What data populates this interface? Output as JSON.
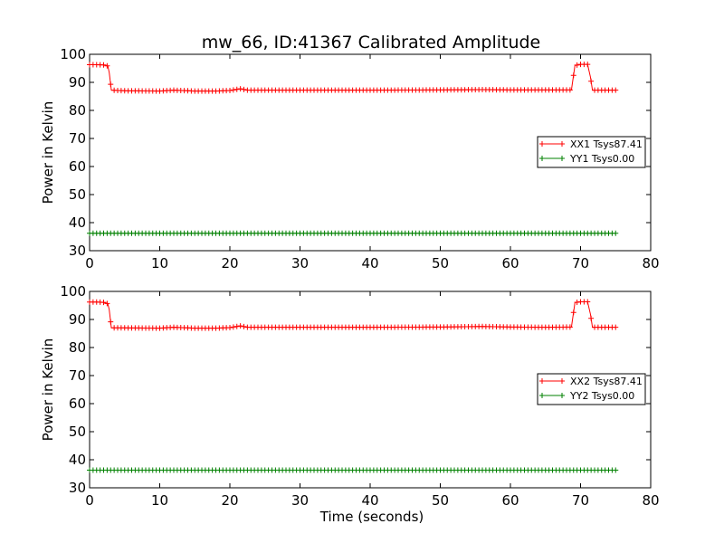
{
  "title": "mw_66, ID:41367 Calibrated Amplitude",
  "colors": {
    "xx": "#ff0000",
    "yy": "#008000"
  },
  "chart_data": [
    {
      "type": "line",
      "xlim": [
        0,
        80
      ],
      "ylim": [
        30,
        100
      ],
      "xticks": [
        0,
        10,
        20,
        30,
        40,
        50,
        60,
        70,
        80
      ],
      "yticks": [
        30,
        40,
        50,
        60,
        70,
        80,
        90,
        100
      ],
      "xlabel": "",
      "ylabel": "Power in Kelvin",
      "grid": false,
      "legend_position": "center-right",
      "series": [
        {
          "name": "XX1 Tsys87.41",
          "color": "#ff0000",
          "marker": "+",
          "points": [
            [
              0,
              96.3
            ],
            [
              1,
              96.3
            ],
            [
              2,
              96.2
            ],
            [
              2.6,
              95.8
            ],
            [
              2.8,
              93.5
            ],
            [
              3.1,
              87.2
            ],
            [
              5,
              87.0
            ],
            [
              10,
              86.9
            ],
            [
              12,
              87.2
            ],
            [
              15,
              86.9
            ],
            [
              18,
              86.9
            ],
            [
              20,
              87.1
            ],
            [
              21.5,
              87.7
            ],
            [
              22.5,
              87.2
            ],
            [
              30,
              87.2
            ],
            [
              40,
              87.2
            ],
            [
              50,
              87.3
            ],
            [
              56,
              87.4
            ],
            [
              60,
              87.3
            ],
            [
              65,
              87.3
            ],
            [
              68.7,
              87.3
            ],
            [
              69.2,
              96.0
            ],
            [
              70,
              96.4
            ],
            [
              71,
              96.4
            ],
            [
              71.4,
              92.0
            ],
            [
              71.7,
              87.2
            ],
            [
              75,
              87.2
            ]
          ]
        },
        {
          "name": "YY1 Tsys0.00",
          "color": "#008000",
          "marker": "+",
          "points": [
            [
              0,
              36.2
            ],
            [
              75,
              36.2
            ]
          ]
        }
      ]
    },
    {
      "type": "line",
      "xlim": [
        0,
        80
      ],
      "ylim": [
        30,
        100
      ],
      "xticks": [
        0,
        10,
        20,
        30,
        40,
        50,
        60,
        70,
        80
      ],
      "yticks": [
        30,
        40,
        50,
        60,
        70,
        80,
        90,
        100
      ],
      "xlabel": "Time (seconds)",
      "ylabel": "Power in Kelvin",
      "grid": false,
      "legend_position": "center-right",
      "series": [
        {
          "name": "XX2 Tsys87.41",
          "color": "#ff0000",
          "marker": "+",
          "points": [
            [
              0,
              96.2
            ],
            [
              1,
              96.2
            ],
            [
              2,
              96.1
            ],
            [
              2.6,
              95.6
            ],
            [
              2.8,
              93.5
            ],
            [
              3.1,
              87.0
            ],
            [
              5,
              87.0
            ],
            [
              10,
              86.9
            ],
            [
              12,
              87.2
            ],
            [
              15,
              86.9
            ],
            [
              18,
              86.9
            ],
            [
              20,
              87.1
            ],
            [
              21.5,
              87.7
            ],
            [
              22.5,
              87.2
            ],
            [
              30,
              87.2
            ],
            [
              40,
              87.2
            ],
            [
              50,
              87.3
            ],
            [
              56,
              87.5
            ],
            [
              60,
              87.3
            ],
            [
              65,
              87.2
            ],
            [
              68.7,
              87.3
            ],
            [
              69.2,
              96.0
            ],
            [
              70,
              96.3
            ],
            [
              71,
              96.3
            ],
            [
              71.4,
              92.0
            ],
            [
              71.7,
              87.2
            ],
            [
              75,
              87.2
            ]
          ]
        },
        {
          "name": "YY2 Tsys0.00",
          "color": "#008000",
          "marker": "+",
          "points": [
            [
              0,
              36.3
            ],
            [
              75,
              36.3
            ]
          ]
        }
      ]
    }
  ]
}
